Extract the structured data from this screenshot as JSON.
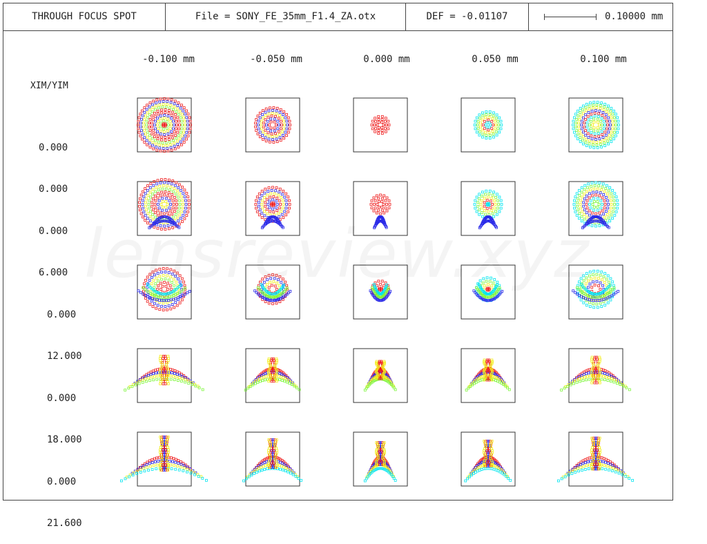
{
  "header": {
    "title": "THROUGH FOCUS SPOT",
    "file": "File = SONY_FE_35mm_F1.4_ZA.otx",
    "def": "DEF = -0.01107",
    "scale_value": "0.10000 mm"
  },
  "columns": [
    "-0.100 mm",
    "-0.050 mm",
    "0.000 mm",
    "0.050 mm",
    "0.100 mm"
  ],
  "row_axis_label": "XIM/YIM",
  "rows": [
    {
      "xim": "0.000",
      "yim": "0.000"
    },
    {
      "xim": "0.000",
      "yim": "6.000"
    },
    {
      "xim": "0.000",
      "yim": "12.000"
    },
    {
      "xim": "0.000",
      "yim": "18.000"
    },
    {
      "xim": "0.000",
      "yim": "21.600"
    }
  ],
  "wavelength_colors": [
    "#00e5f0",
    "#7cf53a",
    "#f2ee1a",
    "#2a2ae8",
    "#ee1a1a"
  ],
  "watermark": "lensreview.xyz"
}
